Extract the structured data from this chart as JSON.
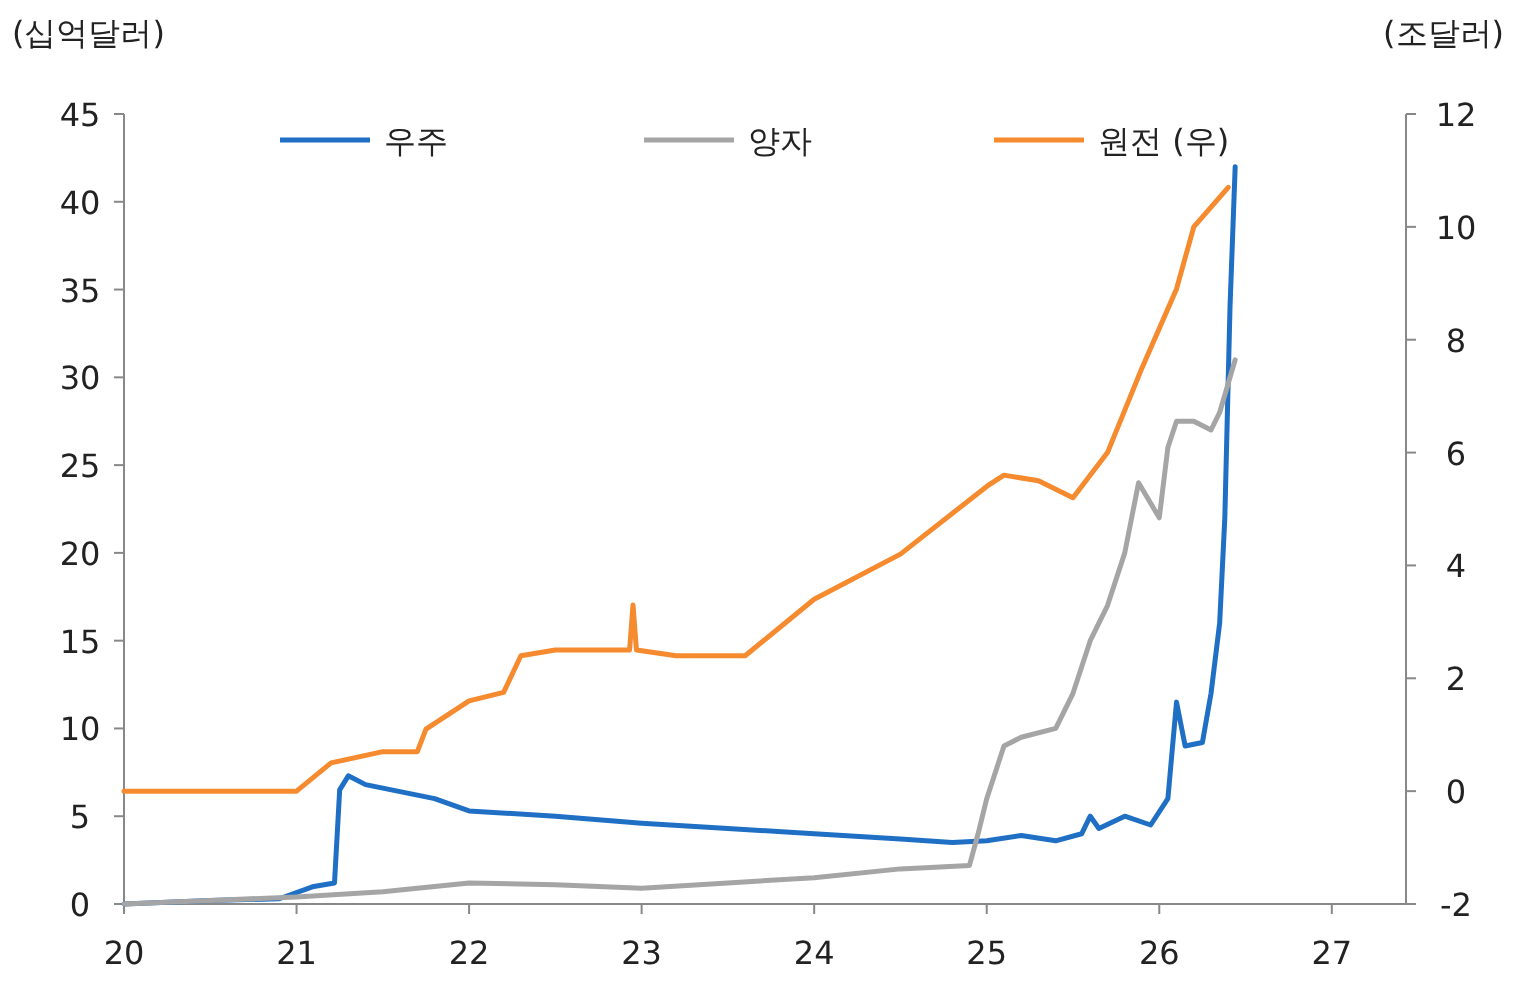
{
  "chart_data": {
    "type": "line",
    "ylabel": "(십억달러)",
    "y2label": "(조달러)",
    "xlim": [
      20,
      27.43
    ],
    "xticks": [
      {
        "value": 20,
        "label": "20"
      },
      {
        "value": 21,
        "label": "21"
      },
      {
        "value": 22,
        "label": "22"
      },
      {
        "value": 23,
        "label": "23"
      },
      {
        "value": 24,
        "label": "24"
      },
      {
        "value": 25,
        "label": "25"
      },
      {
        "value": 26,
        "label": "26"
      },
      {
        "value": 27,
        "label": "27"
      }
    ],
    "ylim": [
      0,
      45
    ],
    "yticks": [
      0,
      5,
      10,
      15,
      20,
      25,
      30,
      35,
      40,
      45
    ],
    "y2lim": [
      -2,
      12
    ],
    "y2ticks": [
      -2,
      0,
      2,
      4,
      6,
      8,
      10,
      12
    ],
    "grid": false,
    "legend": "top",
    "marker": "none",
    "line_style": "solid",
    "series": [
      {
        "name": "우주",
        "color": "#1f6fc5",
        "x": [
          20,
          20.5,
          20.9,
          21.1,
          21.22,
          21.25,
          21.3,
          21.4,
          21.8,
          22.0,
          22.5,
          23,
          23.5,
          24,
          24.5,
          24.8,
          25.0,
          25.2,
          25.4,
          25.55,
          25.6,
          25.65,
          25.8,
          25.95,
          26.05,
          26.1,
          26.15,
          26.25,
          26.3,
          26.35,
          26.38,
          26.41,
          26.44
        ],
        "values": [
          0,
          0.2,
          0.3,
          1,
          1.2,
          6.5,
          7.3,
          6.8,
          6,
          5.3,
          5,
          4.6,
          4.3,
          4,
          3.7,
          3.5,
          3.6,
          3.9,
          3.6,
          4,
          5,
          4.3,
          5,
          4.5,
          6,
          11.5,
          9,
          9.2,
          12,
          16,
          22,
          34,
          42
        ]
      },
      {
        "name": "양자",
        "color": "#a5a5a5",
        "x": [
          20,
          20.5,
          21,
          21.5,
          22,
          22.5,
          23,
          23.5,
          24,
          24.5,
          24.9,
          24.95,
          25.0,
          25.1,
          25.2,
          25.4,
          25.5,
          25.6,
          25.7,
          25.8,
          25.88,
          26.0,
          26.05,
          26.1,
          26.2,
          26.3,
          26.35,
          26.44
        ],
        "values": [
          0,
          0.2,
          0.4,
          0.7,
          1.2,
          1.1,
          0.9,
          1.2,
          1.5,
          2.0,
          2.2,
          4,
          6,
          9,
          9.5,
          10,
          12,
          15,
          17,
          20,
          24,
          22,
          26,
          27.5,
          27.5,
          27,
          28,
          31
        ]
      },
      {
        "name": "원전 (우)",
        "color": "#f58a2e",
        "axis": "y2",
        "x": [
          20,
          20.5,
          21,
          21.2,
          21.5,
          21.7,
          21.75,
          22.0,
          22.2,
          22.3,
          22.5,
          22.93,
          22.95,
          22.97,
          23.2,
          23.6,
          24,
          24.5,
          25,
          25.1,
          25.3,
          25.5,
          25.7,
          25.9,
          26.0,
          26.1,
          26.2,
          26.4
        ],
        "values": [
          0,
          0,
          0,
          0.5,
          0.7,
          0.7,
          1.1,
          1.6,
          1.75,
          2.4,
          2.5,
          2.5,
          3.3,
          2.5,
          2.4,
          2.4,
          3.4,
          4.2,
          5.4,
          5.6,
          5.5,
          5.2,
          6,
          7.5,
          8.2,
          8.9,
          10,
          10.7
        ]
      }
    ]
  }
}
